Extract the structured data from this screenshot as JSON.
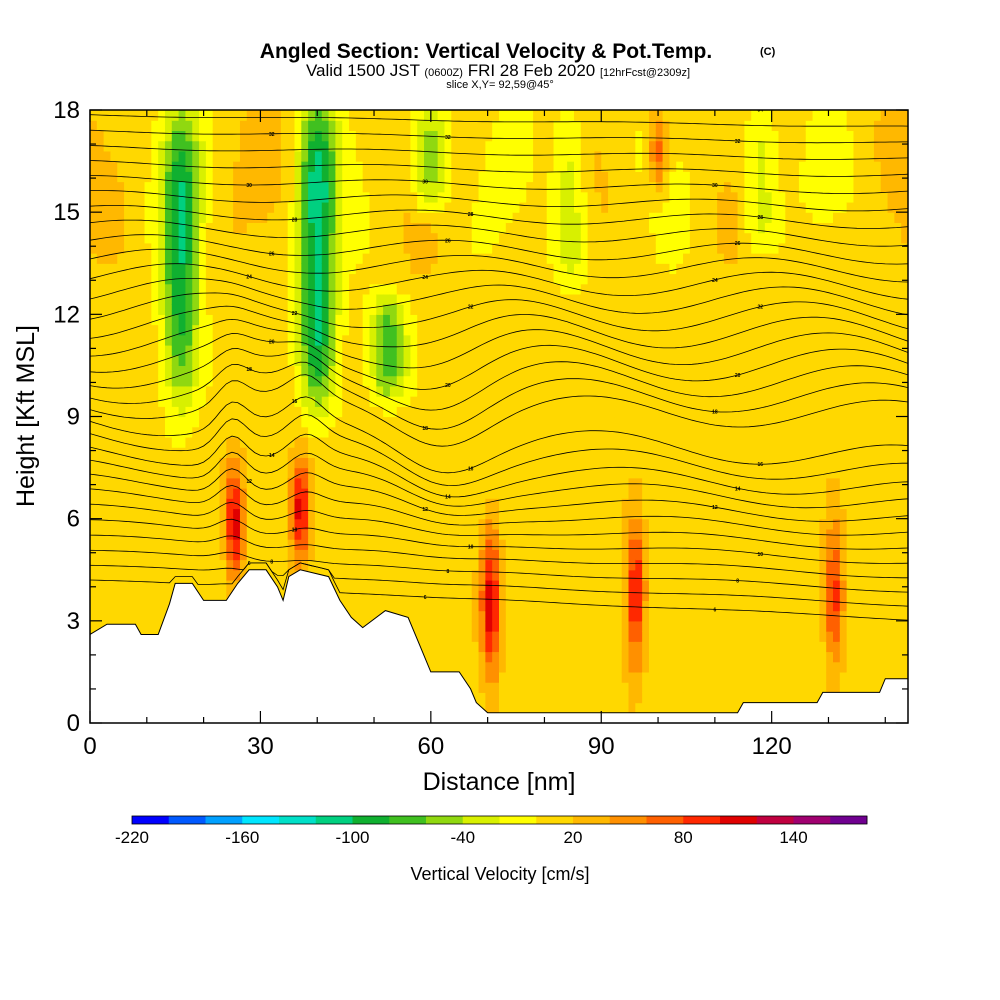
{
  "chart_data": {
    "type": "heatmap",
    "title": "Angled Section: Vertical Velocity & Pot.Temp.",
    "title_mark": "(C)",
    "subtitle_parts": [
      "Valid 1500 JST",
      "(0600Z)",
      "FRI 28 Feb 2020",
      "[12hrFcst@2309z]"
    ],
    "slice_label": "slice X,Y= 92,59@45°",
    "xlabel": "Distance [nm]",
    "ylabel": "Height [Kft MSL]",
    "xlim": [
      0,
      144
    ],
    "ylim": [
      0,
      18
    ],
    "x_ticks": [
      0,
      30,
      60,
      90,
      120
    ],
    "y_ticks": [
      0,
      3,
      6,
      9,
      12,
      15,
      18
    ],
    "grid": false,
    "terrain_kft": [
      [
        0,
        2.6
      ],
      [
        3,
        2.9
      ],
      [
        8,
        2.9
      ],
      [
        9,
        2.6
      ],
      [
        12,
        2.6
      ],
      [
        14,
        3.5
      ],
      [
        15,
        4.1
      ],
      [
        18,
        4.1
      ],
      [
        20,
        3.6
      ],
      [
        24,
        3.6
      ],
      [
        26,
        4.1
      ],
      [
        28,
        4.5
      ],
      [
        31,
        4.5
      ],
      [
        33,
        4.0
      ],
      [
        34,
        3.6
      ],
      [
        35,
        4.3
      ],
      [
        37,
        4.5
      ],
      [
        42,
        4.3
      ],
      [
        44,
        3.6
      ],
      [
        46,
        3.1
      ],
      [
        48,
        2.8
      ],
      [
        52,
        3.3
      ],
      [
        56,
        3.1
      ],
      [
        58,
        2.3
      ],
      [
        60,
        1.5
      ],
      [
        65,
        1.5
      ],
      [
        67,
        1.0
      ],
      [
        68,
        0.6
      ],
      [
        70,
        0.3
      ],
      [
        114,
        0.3
      ],
      [
        115,
        0.6
      ],
      [
        128,
        0.6
      ],
      [
        129,
        0.9
      ],
      [
        139,
        0.9
      ],
      [
        140,
        1.3
      ],
      [
        144,
        1.3
      ]
    ],
    "series": [
      {
        "name": "Vertical Velocity",
        "units": "cm/s",
        "updraft_cores": [
          {
            "x": 25.5,
            "z": [
              4.0,
              7.8
            ],
            "value": 110
          },
          {
            "x": 37.0,
            "z": [
              4.5,
              8.0
            ],
            "value": 110
          },
          {
            "x": 70.5,
            "z": [
              1.0,
              6.0
            ],
            "value": 110
          },
          {
            "x": 96.0,
            "z": [
              1.5,
              6.0
            ],
            "value": 110
          },
          {
            "x": 131.0,
            "z": [
              1.5,
              6.0
            ],
            "value": 95
          },
          {
            "x": 100.0,
            "z": [
              15.5,
              18.0
            ],
            "value": 80
          }
        ],
        "downdraft_columns": [
          {
            "x": 16.0,
            "z": [
              9.5,
              18.0
            ],
            "value": -90
          },
          {
            "x": 40.0,
            "z": [
              9.5,
              18.0
            ],
            "value": -110
          },
          {
            "x": 52.5,
            "z": [
              9.5,
              12.5
            ],
            "value": -70
          },
          {
            "x": 60.0,
            "z": [
              15.0,
              18.0
            ],
            "value": -60
          },
          {
            "x": 84.5,
            "z": [
              13.0,
              18.0
            ],
            "value": -40
          },
          {
            "x": 118.0,
            "z": [
              14.0,
              18.0
            ],
            "value": -40
          }
        ]
      },
      {
        "name": "Pot.Temp.",
        "units": "C",
        "contour_labels": [
          "6",
          "8",
          "10",
          "12",
          "14",
          "16",
          "18",
          "20",
          "22",
          "24",
          "26",
          "28",
          "30",
          "32",
          "34",
          "36"
        ]
      }
    ],
    "colorbar": {
      "label": "Vertical Velocity [cm/s]",
      "ticks": [
        "-220",
        "-160",
        "-100",
        "-40",
        "20",
        "80",
        "140"
      ],
      "colors": [
        "#0000ff",
        "#0059ff",
        "#00a0ff",
        "#00e6ff",
        "#00e0c8",
        "#00d080",
        "#10b030",
        "#40c020",
        "#90d810",
        "#d8f000",
        "#ffff00",
        "#ffd800",
        "#ffb800",
        "#ff9000",
        "#ff6000",
        "#ff2800",
        "#e00000",
        "#c00040",
        "#a00070",
        "#700090"
      ]
    }
  }
}
